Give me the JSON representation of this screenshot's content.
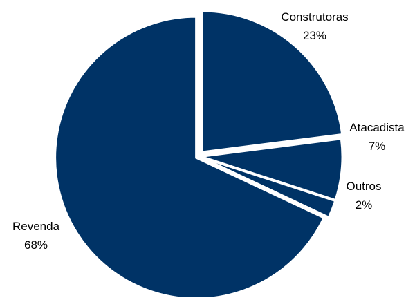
{
  "chart_data": {
    "type": "pie",
    "title": "",
    "start_at": "12 o'clock",
    "direction": "clockwise",
    "exploded": true,
    "legend": "none",
    "colors": {
      "slice": "#003366",
      "separator": "#ffffff"
    },
    "slices": [
      {
        "label": "Construtoras",
        "value": 23,
        "value_label": "23%"
      },
      {
        "label": "Atacadista",
        "value": 7,
        "value_label": "7%"
      },
      {
        "label": "Outros",
        "value": 2,
        "value_label": "2%"
      },
      {
        "label": "Revenda",
        "value": 68,
        "value_label": "68%"
      }
    ]
  }
}
